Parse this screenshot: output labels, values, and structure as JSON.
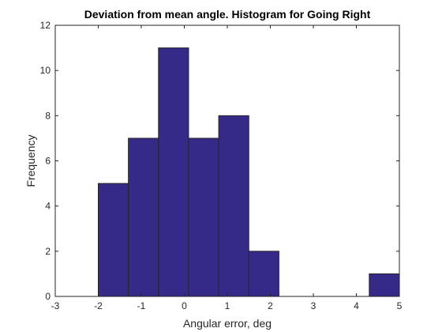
{
  "chart_data": {
    "type": "bar",
    "title": "Deviation from mean angle. Histogram for Going Right",
    "xlabel": "Angular error, deg",
    "ylabel": "Frequency",
    "xlim": [
      -3,
      5
    ],
    "ylim": [
      0,
      12
    ],
    "xticks": [
      -3,
      -2,
      -1,
      0,
      1,
      2,
      3,
      4,
      5
    ],
    "yticks": [
      0,
      2,
      4,
      6,
      8,
      10,
      12
    ],
    "xtick_labels": [
      "-3",
      "-2",
      "-1",
      "0",
      "1",
      "2",
      "3",
      "4",
      "5"
    ],
    "ytick_labels": [
      "0",
      "2",
      "4",
      "6",
      "8",
      "10",
      "12"
    ],
    "bin_edges": [
      -2.0,
      -1.3,
      -0.6,
      0.1,
      0.8,
      1.5,
      2.2,
      2.9,
      3.6,
      4.3,
      5.0
    ],
    "values": [
      5,
      7,
      11,
      7,
      8,
      2,
      0,
      0,
      0,
      1
    ],
    "bar_color": "#352a87",
    "edge_color": "#262626",
    "grid": false,
    "box": true
  }
}
